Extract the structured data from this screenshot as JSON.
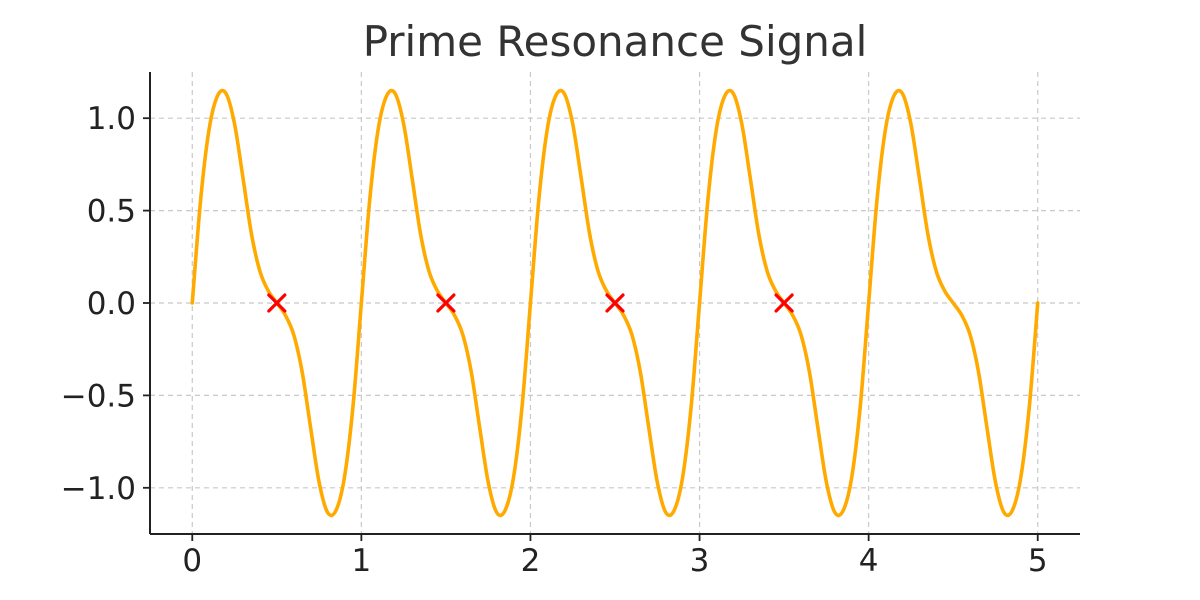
{
  "chart_data": {
    "type": "line",
    "title": "Prime Resonance Signal",
    "xlabel": "",
    "ylabel": "",
    "xlim": [
      -0.25,
      5.25
    ],
    "ylim": [
      -1.25,
      1.25
    ],
    "x_ticks": [
      0,
      1,
      2,
      3,
      4,
      5
    ],
    "x_tick_labels": [
      "0",
      "1",
      "2",
      "3",
      "4",
      "5"
    ],
    "y_ticks": [
      1.0,
      0.5,
      0.0,
      -0.5,
      -1.0
    ],
    "y_tick_labels": [
      "1.0",
      "0.5",
      "0.0",
      "−0.5",
      "−1.0"
    ],
    "grid": true,
    "legend": "none",
    "series": [
      {
        "x": [
          0,
          0.05,
          0.1,
          0.15,
          0.2,
          0.25,
          0.3,
          0.35,
          0.4,
          0.45,
          0.5,
          0.55,
          0.6,
          0.65,
          0.7,
          0.75,
          0.8,
          0.85,
          0.9,
          0.95,
          1.0,
          1.05,
          1.1,
          1.15,
          1.2,
          1.25,
          1.3,
          1.35,
          1.4,
          1.45,
          1.5,
          1.55,
          1.6,
          1.65,
          1.7,
          1.75,
          1.8,
          1.85,
          1.9,
          1.95,
          2.0,
          2.05,
          2.1,
          2.15,
          2.2,
          2.25,
          2.3,
          2.35,
          2.4,
          2.45,
          2.5,
          2.55,
          2.6,
          2.65,
          2.7,
          2.75,
          2.8,
          2.85,
          2.9,
          2.95,
          3.0,
          3.05,
          3.1,
          3.15,
          3.2,
          3.25,
          3.3,
          3.35,
          3.4,
          3.45,
          3.5,
          3.55,
          3.6,
          3.65,
          3.7,
          3.75,
          3.8,
          3.85,
          3.9,
          3.95,
          4.0,
          4.05,
          4.1,
          4.15,
          4.2,
          4.25,
          4.3,
          4.35,
          4.4,
          4.45,
          4.5,
          4.55,
          4.6,
          4.65,
          4.7,
          4.75,
          4.8,
          4.85,
          4.9,
          4.95,
          5.0
        ],
        "y": [
          0.0,
          0.564,
          0.943,
          1.122,
          1.133,
          0.969,
          0.676,
          0.374,
          0.172,
          0.065,
          0.0,
          -0.065,
          -0.172,
          -0.374,
          -0.676,
          -0.969,
          -1.133,
          -1.122,
          -0.943,
          -0.564,
          0.0,
          0.564,
          0.943,
          1.122,
          1.133,
          0.969,
          0.676,
          0.374,
          0.172,
          0.065,
          0.0,
          -0.065,
          -0.172,
          -0.374,
          -0.676,
          -0.969,
          -1.133,
          -1.122,
          -0.943,
          -0.564,
          0.0,
          0.564,
          0.943,
          1.122,
          1.133,
          0.969,
          0.676,
          0.374,
          0.172,
          0.065,
          0.0,
          -0.065,
          -0.172,
          -0.374,
          -0.676,
          -0.969,
          -1.133,
          -1.122,
          -0.943,
          -0.564,
          0.0,
          0.564,
          0.943,
          1.122,
          1.133,
          0.969,
          0.676,
          0.374,
          0.172,
          0.065,
          0.0,
          -0.065,
          -0.172,
          -0.374,
          -0.676,
          -0.969,
          -1.133,
          -1.122,
          -0.943,
          -0.564,
          0.0,
          0.564,
          0.943,
          1.122,
          1.133,
          0.969,
          0.676,
          0.374,
          0.172,
          0.065,
          0.0,
          -0.065,
          -0.172,
          -0.374,
          -0.676,
          -0.969,
          -1.133,
          -1.122,
          -0.943,
          -0.564,
          0.0
        ],
        "color": "#FFAA00"
      }
    ],
    "markers": {
      "shape": "x",
      "color": "#FF0000",
      "x": [
        0.5,
        1.5,
        2.5,
        3.5
      ],
      "y": [
        0.0,
        0.0,
        0.0,
        0.0
      ]
    }
  }
}
